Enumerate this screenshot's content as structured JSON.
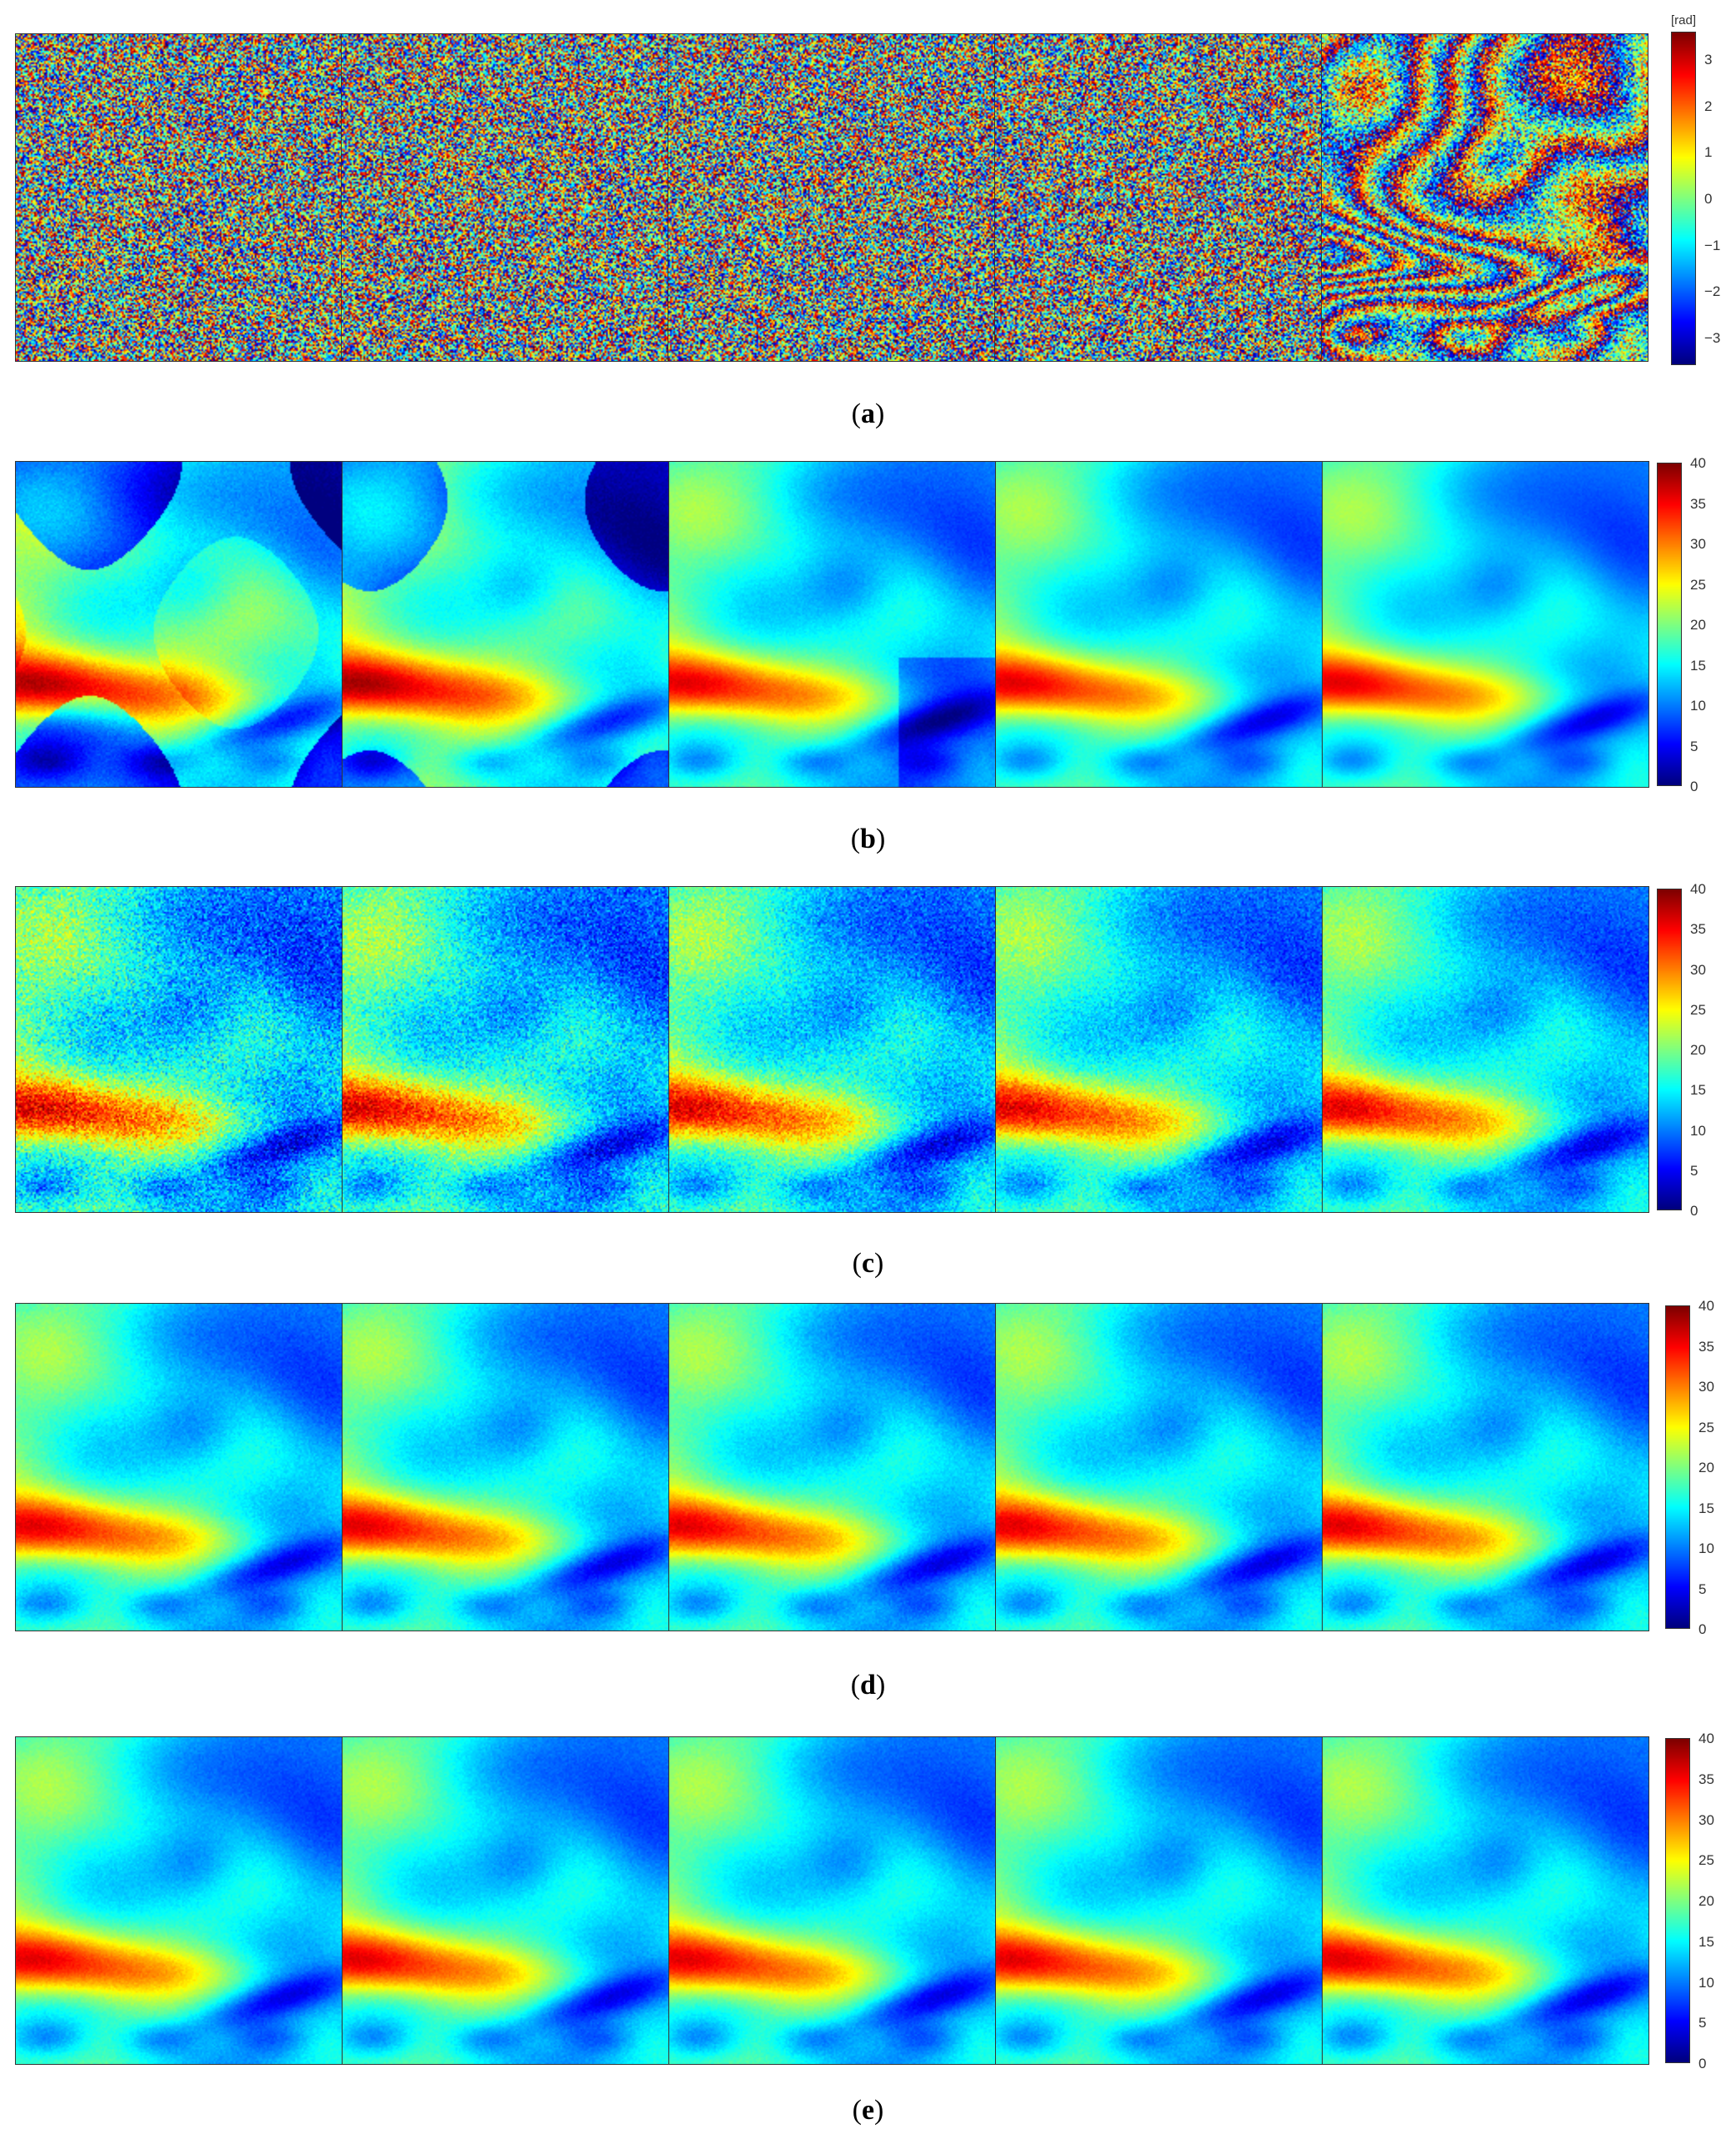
{
  "figure": {
    "panels": [
      {
        "id": "a",
        "caption_open": "(",
        "caption_label": "a",
        "caption_close": ")",
        "colormap": "jet",
        "pattern": "wrapped-phase",
        "noise_levels": [
          0.95,
          0.85,
          0.7,
          0.45,
          0.25
        ],
        "colorbar": {
          "unit": "[rad]",
          "min": -3.6,
          "max": 3.6,
          "ticks": [
            "3",
            "2",
            "1",
            "0",
            "−1",
            "−2",
            "−3"
          ],
          "tick_values": [
            3,
            2,
            1,
            0,
            -1,
            -2,
            -3
          ]
        }
      },
      {
        "id": "b",
        "caption_open": "(",
        "caption_label": "b",
        "caption_close": ")",
        "colormap": "jet",
        "pattern": "unwrapped-errors",
        "noise_levels": [
          0.35,
          0.3,
          0.25,
          0.2,
          0.15
        ],
        "colorbar": {
          "unit": "",
          "min": 0,
          "max": 40,
          "ticks": [
            "40",
            "35",
            "30",
            "25",
            "20",
            "15",
            "10",
            "5",
            "0"
          ],
          "tick_values": [
            40,
            35,
            30,
            25,
            20,
            15,
            10,
            5,
            0
          ]
        }
      },
      {
        "id": "c",
        "caption_open": "(",
        "caption_label": "c",
        "caption_close": ")",
        "colormap": "jet",
        "pattern": "noisy-unwrapped",
        "noise_levels": [
          0.7,
          0.6,
          0.5,
          0.4,
          0.3
        ],
        "colorbar": {
          "unit": "",
          "min": 0,
          "max": 40,
          "ticks": [
            "40",
            "35",
            "30",
            "25",
            "20",
            "15",
            "10",
            "5",
            "0"
          ],
          "tick_values": [
            40,
            35,
            30,
            25,
            20,
            15,
            10,
            5,
            0
          ]
        }
      },
      {
        "id": "d",
        "caption_open": "(",
        "caption_label": "d",
        "caption_close": ")",
        "colormap": "jet",
        "pattern": "clean-unwrapped",
        "noise_levels": [
          0.15,
          0.15,
          0.15,
          0.15,
          0.15
        ],
        "colorbar": {
          "unit": "",
          "min": 0,
          "max": 40,
          "ticks": [
            "40",
            "35",
            "30",
            "25",
            "20",
            "15",
            "10",
            "5",
            "0"
          ],
          "tick_values": [
            40,
            35,
            30,
            25,
            20,
            15,
            10,
            5,
            0
          ]
        }
      },
      {
        "id": "e",
        "caption_open": "(",
        "caption_label": "e",
        "caption_close": ")",
        "colormap": "jet",
        "pattern": "clean-unwrapped",
        "noise_levels": [
          0.12,
          0.12,
          0.12,
          0.12,
          0.12
        ],
        "colorbar": {
          "unit": "",
          "min": 0,
          "max": 40,
          "ticks": [
            "40",
            "35",
            "30",
            "25",
            "20",
            "15",
            "10",
            "5",
            "0"
          ],
          "tick_values": [
            40,
            35,
            30,
            25,
            20,
            15,
            10,
            5,
            0
          ]
        }
      }
    ]
  }
}
